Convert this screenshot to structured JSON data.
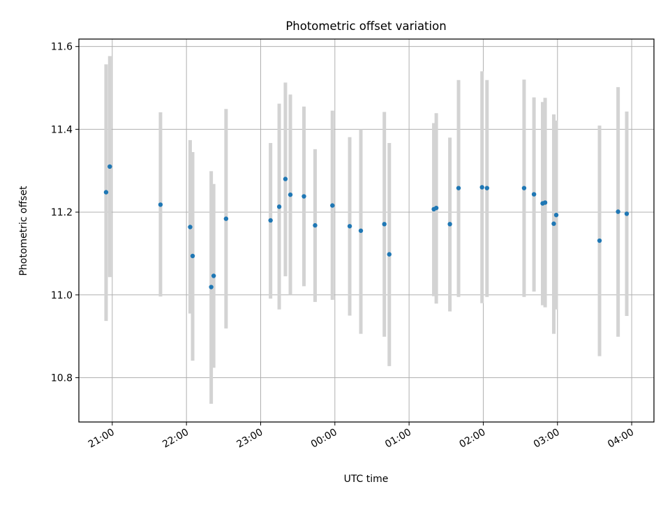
{
  "colors": {
    "point": "#1f77b4",
    "errorbar": "#d3d3d3",
    "grid": "#b0b0b0",
    "axis": "#000000"
  },
  "chart_data": {
    "type": "scatter",
    "title": "Photometric offset variation",
    "xlabel": "UTC time",
    "ylabel": "Photometric offset",
    "xlim": [
      "20:33",
      "04:18"
    ],
    "ylim": [
      10.693,
      11.618
    ],
    "xticks": [
      "21:00",
      "22:00",
      "23:00",
      "00:00",
      "01:00",
      "02:00",
      "03:00",
      "04:00"
    ],
    "yticks": [
      "10.8",
      "11.0",
      "11.2",
      "11.4",
      "11.6"
    ],
    "grid": true,
    "points": [
      {
        "x": "20:55",
        "y": 11.248,
        "ylow": 10.937,
        "yhigh": 11.557
      },
      {
        "x": "20:58",
        "y": 11.31,
        "ylow": 11.043,
        "yhigh": 11.577
      },
      {
        "x": "21:39",
        "y": 11.218,
        "ylow": 10.996,
        "yhigh": 11.441
      },
      {
        "x": "22:03",
        "y": 11.164,
        "ylow": 10.955,
        "yhigh": 11.374
      },
      {
        "x": "22:05",
        "y": 11.094,
        "ylow": 10.841,
        "yhigh": 11.345
      },
      {
        "x": "22:20",
        "y": 11.019,
        "ylow": 10.737,
        "yhigh": 11.299
      },
      {
        "x": "22:22",
        "y": 11.046,
        "ylow": 10.824,
        "yhigh": 11.268
      },
      {
        "x": "22:32",
        "y": 11.184,
        "ylow": 10.919,
        "yhigh": 11.449
      },
      {
        "x": "23:08",
        "y": 11.18,
        "ylow": 10.991,
        "yhigh": 11.367
      },
      {
        "x": "23:15",
        "y": 11.213,
        "ylow": 10.965,
        "yhigh": 11.462
      },
      {
        "x": "23:20",
        "y": 11.28,
        "ylow": 11.045,
        "yhigh": 11.513
      },
      {
        "x": "23:24",
        "y": 11.242,
        "ylow": 11.0,
        "yhigh": 11.484
      },
      {
        "x": "23:35",
        "y": 11.238,
        "ylow": 11.021,
        "yhigh": 11.455
      },
      {
        "x": "23:44",
        "y": 11.168,
        "ylow": 10.983,
        "yhigh": 11.352
      },
      {
        "x": "23:58",
        "y": 11.216,
        "ylow": 10.988,
        "yhigh": 11.445
      },
      {
        "x": "00:12",
        "y": 11.166,
        "ylow": 10.95,
        "yhigh": 11.381
      },
      {
        "x": "00:21",
        "y": 11.155,
        "ylow": 10.906,
        "yhigh": 11.4
      },
      {
        "x": "00:40",
        "y": 11.171,
        "ylow": 10.899,
        "yhigh": 11.442
      },
      {
        "x": "00:44",
        "y": 11.098,
        "ylow": 10.828,
        "yhigh": 11.367
      },
      {
        "x": "01:20",
        "y": 11.207,
        "ylow": 10.997,
        "yhigh": 11.415
      },
      {
        "x": "01:22",
        "y": 11.21,
        "ylow": 10.979,
        "yhigh": 11.439
      },
      {
        "x": "01:33",
        "y": 11.171,
        "ylow": 10.96,
        "yhigh": 11.38
      },
      {
        "x": "01:40",
        "y": 11.258,
        "ylow": 10.995,
        "yhigh": 11.519
      },
      {
        "x": "01:59",
        "y": 11.26,
        "ylow": 10.98,
        "yhigh": 11.54
      },
      {
        "x": "02:03",
        "y": 11.258,
        "ylow": 10.995,
        "yhigh": 11.519
      },
      {
        "x": "02:33",
        "y": 11.258,
        "ylow": 10.995,
        "yhigh": 11.52
      },
      {
        "x": "02:41",
        "y": 11.243,
        "ylow": 11.008,
        "yhigh": 11.477
      },
      {
        "x": "02:48",
        "y": 11.221,
        "ylow": 10.975,
        "yhigh": 11.466
      },
      {
        "x": "02:50",
        "y": 11.223,
        "ylow": 10.97,
        "yhigh": 11.476
      },
      {
        "x": "02:57",
        "y": 11.172,
        "ylow": 10.906,
        "yhigh": 11.436
      },
      {
        "x": "02:59",
        "y": 11.193,
        "ylow": 10.965,
        "yhigh": 11.421
      },
      {
        "x": "03:34",
        "y": 11.131,
        "ylow": 10.852,
        "yhigh": 11.409
      },
      {
        "x": "03:49",
        "y": 11.201,
        "ylow": 10.899,
        "yhigh": 11.502
      },
      {
        "x": "03:56",
        "y": 11.196,
        "ylow": 10.949,
        "yhigh": 11.443
      }
    ]
  }
}
